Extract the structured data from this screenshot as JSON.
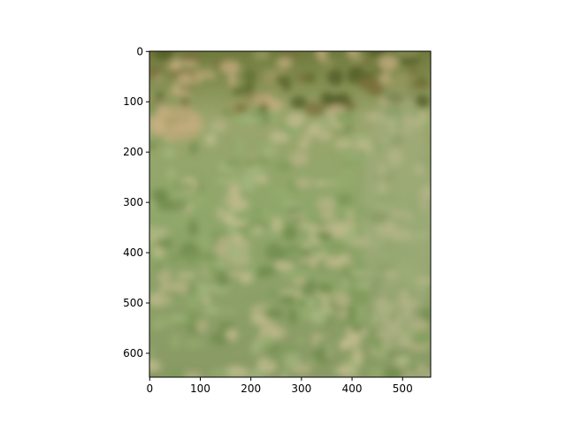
{
  "chart_data": {
    "type": "image",
    "xlim": [
      -0.5,
      555.5
    ],
    "ylim": [
      647.5,
      -0.5
    ],
    "xticks": [
      0,
      100,
      200,
      300,
      400,
      500
    ],
    "yticks": [
      0,
      100,
      200,
      300,
      400,
      500,
      600
    ],
    "grid": false
  }
}
